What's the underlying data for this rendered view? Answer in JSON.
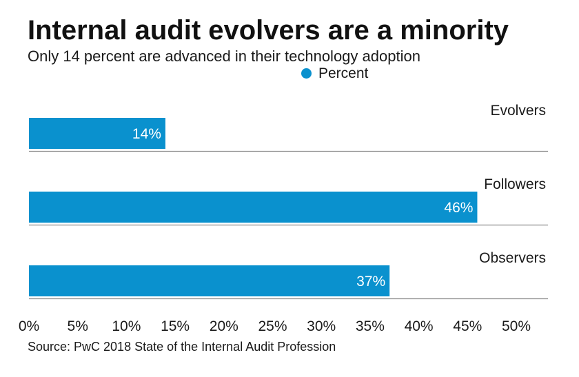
{
  "colors": {
    "bar": "#0a91ce",
    "separator": "#8a8a8a",
    "text": "#1a1a1a"
  },
  "legend": {
    "label": "Percent",
    "marker_icon": "circle-icon"
  },
  "source": "Source: PwC 2018 State of the Internal Audit Profession",
  "chart_data": {
    "type": "bar",
    "orientation": "horizontal",
    "title": "Internal audit evolvers are a minority",
    "subtitle": "Only 14 percent are advanced in their technology adoption",
    "categories": [
      "Evolvers",
      "Followers",
      "Observers"
    ],
    "series": [
      {
        "name": "Percent",
        "values": [
          14,
          46,
          37
        ],
        "labels": [
          "14%",
          "46%",
          "37%"
        ]
      }
    ],
    "xlim": [
      0,
      50
    ],
    "xticks": [
      0,
      5,
      10,
      15,
      20,
      25,
      30,
      35,
      40,
      45,
      50
    ],
    "xtick_labels": [
      "0%",
      "5%",
      "10%",
      "15%",
      "20%",
      "25%",
      "30%",
      "35%",
      "40%",
      "45%",
      "50%"
    ],
    "xlabel": "",
    "ylabel": "",
    "grid": false,
    "legend_position": "top-center"
  }
}
